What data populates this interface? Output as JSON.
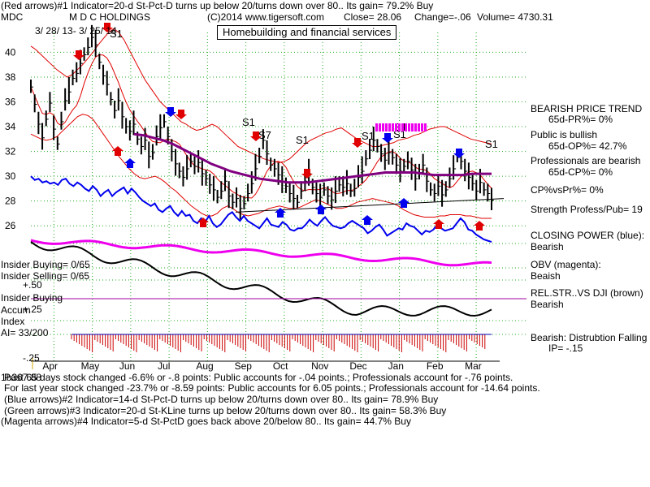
{
  "header": {
    "line1": "(Red arrows)#1 Indicator=20-d St-Pct-D turns up below 20/turns down over 80.. Its gain= 79.2% Buy",
    "symbol": "MDC",
    "company": "M D C HOLDINGS",
    "copyright": "(C)2014 www.tigersoft.com",
    "close": "Close= 28.06",
    "change": "Change=-.06",
    "volume": "Volume= 4730.31",
    "date_range": "3/ 28/ 13-  3/ 25/ 14",
    "sector_title": "Homebuilding and financial services"
  },
  "right_panel": {
    "trend_title": "BEARISH PRICE TREND",
    "pr": "65d-PR%= 0%",
    "public_title": "Public is bullish",
    "op": "65d-OP%= 42.7%",
    "prof_title": "Professionals are bearish",
    "cp": "65d-CP%= 0%",
    "cpvspr": "CP%vsPr%=  0%",
    "strength": "Strength Profess/Pub= 19",
    "closing_power": "CLOSING POWER (blue):",
    "closing_power_val": "Bearish",
    "obv": "OBV (magenta):",
    "obv_val": "Beaish",
    "relstr": "REL.STR..VS DJI (brown)",
    "relstr_val": "Bearish",
    "distribution": "Bearish:  Distrubtion Falling",
    "ip": "IP= -.15"
  },
  "left_labels": {
    "insider_buying": "Insider Buying= 0/65",
    "insider_selling": "Insider Selling= 0/65",
    "plus50": "+.50",
    "insider_buying2": "Insider Buying",
    "accum": "Accum",
    "plus25": "+.25",
    "index": "Index",
    "ai": "AI= 33/200",
    "minus25": "-.25"
  },
  "footer": {
    "line1": "Past 65 days stock changed -6.6% or -.8 points:  Public accounts for -.04 points.;  Professionals account for -.76 points.",
    "line1_overlay": "1b367.88",
    "line2": "For last year stock changed -23.7% or -8.59 points:  Public accounts for  6.05 points.;  Professionals account for -14.64 points.",
    "line3": "(Blue arrows)#2 Indicator=14-d St-Pct-D turns up below 20/turns down over 80.. Its gain= 78.9% Buy",
    "line4": "(Green arrows)#3 Indicator=20-d St-KLine turns up below 20/turns down over 80.. Its gain= 58.3% Buy",
    "line5": "(Magenta arrows)#4 Indicator=5-d St-PctD goes back above 20/below 80.. Its gain= 44.7% Buy"
  },
  "chart_data": {
    "type": "bar",
    "subtype": "ohlc-price-with-indicators",
    "x_labels": [
      "Apr",
      "May",
      "Jun",
      "Jul",
      "Aug",
      "Sep",
      "Oct",
      "Nov",
      "Dec",
      "Jan",
      "Feb",
      "Mar"
    ],
    "y_ticks": [
      26,
      28,
      30,
      32,
      34,
      36,
      38,
      40
    ],
    "ylim": [
      24.9,
      41.6
    ],
    "signal_labels": [
      "S1",
      "S1",
      "S7",
      "S1",
      "S1",
      "S1",
      "S1",
      "S1"
    ],
    "close_series": [
      37.2,
      35.8,
      34.2,
      33.1,
      34.6,
      35.9,
      33.8,
      32.6,
      34.4,
      36.1,
      36.8,
      37.9,
      38.3,
      39.1,
      39.8,
      40.4,
      41.2,
      40.6,
      39.2,
      38.1,
      37.4,
      36.2,
      35.3,
      36.1,
      34.8,
      34.0,
      33.6,
      34.2,
      33.0,
      32.4,
      32.9,
      31.6,
      31.9,
      33.2,
      33.9,
      34.4,
      33.2,
      32.0,
      31.0,
      30.4,
      29.9,
      30.6,
      31.2,
      30.8,
      31.1,
      30.2,
      29.8,
      29.3,
      28.9,
      28.3,
      28.8,
      29.6,
      28.4,
      27.9,
      28.2,
      27.4,
      27.8,
      28.6,
      29.4,
      30.6,
      31.6,
      32.9,
      31.8,
      30.9,
      30.6,
      30.1,
      29.6,
      29.2,
      28.6,
      28.2,
      27.9,
      28.8,
      29.6,
      30.2,
      29.1,
      28.6,
      28.3,
      28.9,
      28.4,
      28.1,
      28.8,
      29.3,
      29.1,
      29.4,
      28.8,
      29.0,
      29.9,
      30.4,
      31.4,
      32.1,
      32.9,
      32.4,
      31.8,
      31.3,
      31.9,
      31.5,
      30.9,
      30.4,
      30.8,
      31.2,
      30.5,
      29.8,
      30.3,
      30.9,
      29.6,
      28.9,
      28.6,
      29.2,
      28.5,
      28.9,
      29.8,
      30.6,
      31.6,
      31.2,
      30.4,
      29.9,
      29.4,
      28.8,
      29.5,
      28.9,
      28.6,
      28.06
    ],
    "band_upper": [
      40.5,
      40.2,
      39.8,
      39.4,
      39.0,
      38.6,
      38.3,
      38.0,
      38.2,
      38.6,
      39.0,
      39.5,
      40.0,
      40.6,
      41.1,
      41.6,
      41.9,
      41.6,
      41.0,
      40.2,
      39.4,
      38.6,
      37.8,
      37.2,
      36.6,
      36.0,
      35.6,
      35.2,
      34.8,
      34.4,
      34.2,
      33.9,
      33.7,
      33.8,
      34.0,
      34.2,
      34.0,
      33.6,
      33.2,
      32.8,
      32.4,
      32.2,
      32.0,
      31.8,
      31.6,
      31.4,
      31.3,
      31.2,
      31.1,
      31.2,
      31.4,
      31.8,
      32.2,
      32.6,
      32.9,
      33.1,
      33.3,
      33.5,
      33.6,
      33.8,
      33.9,
      33.6,
      33.3,
      33.0,
      32.8,
      32.6,
      32.4,
      32.4,
      32.5,
      32.6,
      32.7,
      32.9,
      33.0,
      33.1,
      33.3,
      33.4,
      33.6,
      33.8,
      33.9,
      34.0,
      34.0,
      33.8,
      33.6,
      33.4,
      33.2,
      33.0,
      32.9,
      32.8,
      32.7,
      32.6
    ],
    "band_lower": [
      33.4,
      33.2,
      33.0,
      32.9,
      33.0,
      33.2,
      33.6,
      34.0,
      34.4,
      34.8,
      35.0,
      34.9,
      34.6,
      34.0,
      33.4,
      32.8,
      32.2,
      31.6,
      31.1,
      30.6,
      30.2,
      29.9,
      29.8,
      29.9,
      30.0,
      29.8,
      29.5,
      29.1,
      28.8,
      28.4,
      28.0,
      27.6,
      27.3,
      27.0,
      26.8,
      26.8,
      27.0,
      27.4,
      27.6,
      27.4,
      27.1,
      26.9,
      26.8,
      26.9,
      27.0,
      27.2,
      27.4,
      27.5,
      27.6,
      27.5,
      27.4,
      27.4,
      27.5,
      27.7,
      27.9,
      28.1,
      28.0,
      27.8,
      27.6,
      27.4,
      27.4,
      27.5,
      27.7,
      27.9,
      28.0,
      28.1,
      28.2,
      28.1,
      28.0,
      27.9,
      27.8,
      27.6,
      27.3,
      27.1,
      26.9,
      26.8,
      26.7,
      26.7,
      26.7,
      26.8,
      26.8,
      26.9,
      26.9,
      26.9,
      26.8,
      26.8,
      26.7,
      26.6,
      26.6,
      26.6
    ],
    "ma65": [
      33.4,
      33.3,
      33.1,
      32.9,
      32.6,
      32.2,
      31.8,
      31.4,
      31.0,
      30.7,
      30.4,
      30.2,
      30.0,
      29.8,
      29.7,
      29.6,
      29.5,
      29.5,
      29.5,
      29.6,
      29.7,
      29.8,
      29.9,
      30.0,
      30.1,
      30.2,
      30.3,
      30.3,
      30.3,
      30.3,
      30.2,
      30.1,
      30.1,
      30.1,
      30.1,
      30.2,
      30.2,
      30.2
    ],
    "closing_power_blue": [
      30.0,
      29.7,
      29.8,
      29.5,
      29.6,
      29.4,
      29.5,
      29.3,
      29.7,
      29.8,
      29.4,
      29.2,
      29.5,
      29.3,
      29.0,
      28.8,
      29.2,
      28.9,
      28.4,
      28.7,
      28.9,
      28.4,
      28.7,
      28.9,
      29.1,
      28.6,
      29.0,
      28.7,
      28.3,
      28.0,
      27.8,
      27.6,
      27.8,
      27.3,
      27.1,
      27.4,
      27.6,
      27.1,
      26.8,
      27.2,
      26.8,
      26.9,
      26.4,
      26.2,
      26.6,
      26.3,
      26.8,
      26.2,
      25.9,
      26.1,
      26.5,
      26.9,
      27.1,
      26.7,
      26.4,
      26.8,
      26.4,
      26.2,
      26.0,
      25.8,
      26.2,
      26.6,
      26.1,
      26.0,
      25.9,
      26.3,
      26.1,
      25.7,
      25.6,
      25.8,
      25.8,
      26.1,
      26.5,
      26.2,
      26.0,
      26.4,
      26.7,
      26.3,
      26.0,
      25.9,
      25.8,
      25.9,
      26.2,
      26.4,
      26.2,
      26.0,
      25.8,
      25.4,
      25.6,
      25.9,
      26.1,
      25.7,
      25.2,
      25.4,
      25.6,
      25.8,
      25.7,
      26.2,
      26.0,
      25.9,
      25.6,
      25.3,
      25.6,
      25.5,
      25.7,
      26.1,
      25.8,
      25.6,
      25.7,
      25.8,
      26.2,
      26.6,
      26.3,
      25.7,
      25.6,
      25.3,
      25.1,
      24.9,
      24.8,
      24.7
    ]
  }
}
